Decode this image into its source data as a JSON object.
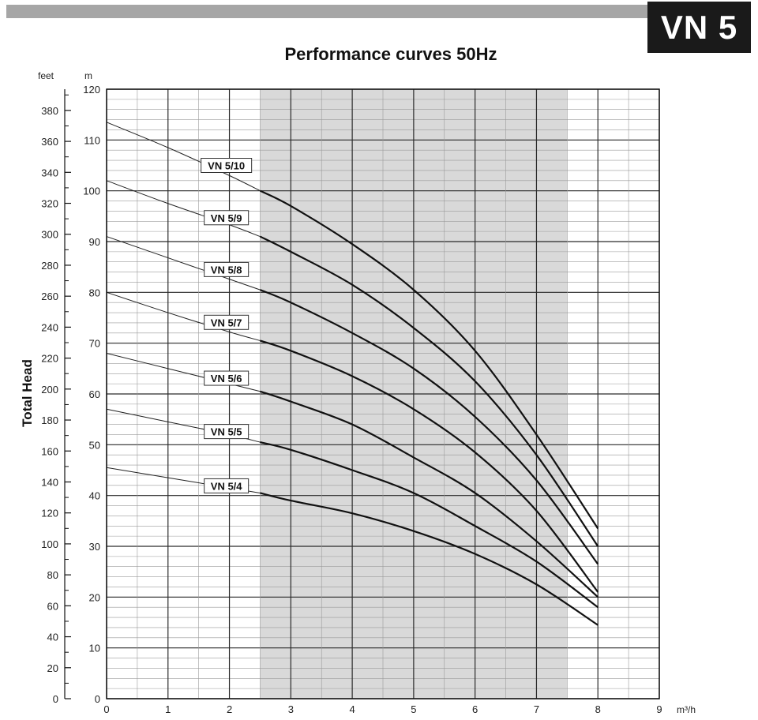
{
  "header": {
    "badge": "VN 5"
  },
  "chart_data": {
    "type": "line",
    "title": "Performance curves 50Hz",
    "ylabel": "Total Head",
    "left_axis_unit": "feet",
    "y_unit": "m",
    "x_unit": "m³/h",
    "xlim": [
      0,
      9
    ],
    "ylim": [
      0,
      120
    ],
    "x_ticks": [
      "0",
      "1",
      "2",
      "3",
      "4",
      "5",
      "6",
      "7",
      "8",
      "9"
    ],
    "y_ticks": [
      "0",
      "10",
      "20",
      "30",
      "40",
      "50",
      "60",
      "70",
      "80",
      "90",
      "100",
      "110",
      "120"
    ],
    "feet_ticks": [
      "0",
      "20",
      "40",
      "60",
      "80",
      "100",
      "120",
      "140",
      "160",
      "180",
      "200",
      "220",
      "240",
      "260",
      "280",
      "300",
      "320",
      "340",
      "360",
      "380"
    ],
    "operating_range": [
      2.5,
      7.5
    ],
    "grid": true,
    "series": [
      {
        "name": "VN 5/10",
        "x": [
          0,
          1,
          2,
          2.5,
          3,
          4,
          5,
          6,
          7,
          8
        ],
        "y": [
          113.5,
          108.5,
          103,
          100,
          97,
          89.5,
          80.5,
          68.5,
          52,
          33.5
        ]
      },
      {
        "name": "VN 5/9",
        "x": [
          0,
          1,
          2,
          2.5,
          3,
          4,
          5,
          6,
          7,
          8
        ],
        "y": [
          102,
          97.5,
          93.3,
          91,
          88,
          81.5,
          73,
          62.5,
          48,
          30
        ]
      },
      {
        "name": "VN 5/8",
        "x": [
          0,
          1,
          2,
          2.5,
          3,
          4,
          5,
          6,
          7,
          8
        ],
        "y": [
          91,
          86.8,
          82.6,
          80.5,
          78,
          72,
          65,
          55.5,
          43,
          26.5
        ]
      },
      {
        "name": "VN 5/7",
        "x": [
          0,
          1,
          2,
          2.5,
          3,
          4,
          5,
          6,
          7,
          8
        ],
        "y": [
          80,
          76,
          72.2,
          70.5,
          68.5,
          63.5,
          57,
          48.5,
          37,
          21
        ]
      },
      {
        "name": "VN 5/6",
        "x": [
          0,
          1,
          2,
          2.5,
          3,
          4,
          5,
          6,
          7,
          8
        ],
        "y": [
          68,
          65,
          62,
          60.5,
          58.5,
          54,
          47.5,
          40.5,
          31,
          20
        ]
      },
      {
        "name": "VN 5/5",
        "x": [
          0,
          1,
          2,
          2.5,
          3,
          4,
          5,
          6,
          7,
          8
        ],
        "y": [
          57,
          54.5,
          52,
          50.5,
          49,
          45,
          40.5,
          34,
          27,
          18
        ]
      },
      {
        "name": "VN 5/4",
        "x": [
          0,
          1,
          2,
          2.5,
          3,
          4,
          5,
          6,
          7,
          8
        ],
        "y": [
          45.5,
          43.5,
          41.5,
          40.5,
          39,
          36.5,
          33,
          28.5,
          22.5,
          14.5
        ]
      }
    ],
    "labels": [
      {
        "text": "VN 5/10",
        "x": 1.95,
        "y": 105
      },
      {
        "text": "VN 5/9",
        "x": 1.95,
        "y": 94.7
      },
      {
        "text": "VN 5/8",
        "x": 1.95,
        "y": 84.5
      },
      {
        "text": "VN 5/7",
        "x": 1.95,
        "y": 74.1
      },
      {
        "text": "VN 5/6",
        "x": 1.95,
        "y": 63.1
      },
      {
        "text": "VN 5/5",
        "x": 1.95,
        "y": 52.6
      },
      {
        "text": "VN 5/4",
        "x": 1.95,
        "y": 41.9
      }
    ]
  }
}
